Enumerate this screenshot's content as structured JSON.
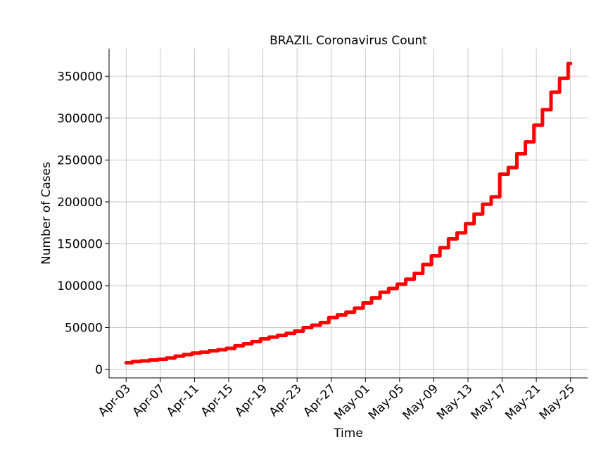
{
  "chart_data": {
    "type": "line",
    "title": "BRAZIL Coronavirus Count",
    "xlabel": "Time",
    "ylabel": "Number of Cases",
    "x_start": "Apr-03",
    "x_tick_labels": [
      "Apr-03",
      "Apr-07",
      "Apr-11",
      "Apr-15",
      "Apr-19",
      "Apr-23",
      "Apr-27",
      "May-01",
      "May-05",
      "May-09",
      "May-13",
      "May-17",
      "May-21",
      "May-25"
    ],
    "y_ticks": [
      0,
      50000,
      100000,
      150000,
      200000,
      250000,
      300000,
      350000
    ],
    "y_tick_labels": [
      "0",
      "50000",
      "100000",
      "150000",
      "200000",
      "250000",
      "300000",
      "350000"
    ],
    "xlim": [
      "Apr-01",
      "May-27"
    ],
    "ylim": [
      -10000,
      383000
    ],
    "grid": true,
    "line_color": "#ff0000",
    "step": true,
    "series": [
      {
        "dates": [
          "Apr-03",
          "Apr-04",
          "Apr-05",
          "Apr-06",
          "Apr-07",
          "Apr-08",
          "Apr-09",
          "Apr-10",
          "Apr-11",
          "Apr-12",
          "Apr-13",
          "Apr-14",
          "Apr-15",
          "Apr-16",
          "Apr-17",
          "Apr-18",
          "Apr-19",
          "Apr-20",
          "Apr-21",
          "Apr-22",
          "Apr-23",
          "Apr-24",
          "Apr-25",
          "Apr-26",
          "Apr-27",
          "Apr-28",
          "Apr-29",
          "Apr-30",
          "May-01",
          "May-02",
          "May-03",
          "May-04",
          "May-05",
          "May-06",
          "May-07",
          "May-08",
          "May-09",
          "May-10",
          "May-11",
          "May-12",
          "May-13",
          "May-14",
          "May-15",
          "May-16",
          "May-17",
          "May-18",
          "May-19",
          "May-20",
          "May-21",
          "May-22",
          "May-23",
          "May-24",
          "May-25"
        ],
        "values": [
          8000,
          9500,
          10300,
          11300,
          12100,
          13700,
          15900,
          17800,
          19600,
          20800,
          22300,
          23600,
          25300,
          28300,
          30700,
          33400,
          36600,
          38700,
          40700,
          43100,
          45800,
          50000,
          52900,
          56000,
          62000,
          65100,
          68400,
          73200,
          79400,
          85400,
          92200,
          96600,
          101800,
          107800,
          114700,
          125200,
          135700,
          145300,
          155900,
          163100,
          174000,
          185500,
          197200,
          206000,
          233100,
          241000,
          257500,
          271600,
          291600,
          310000,
          330900,
          347400,
          365200
        ]
      }
    ]
  }
}
